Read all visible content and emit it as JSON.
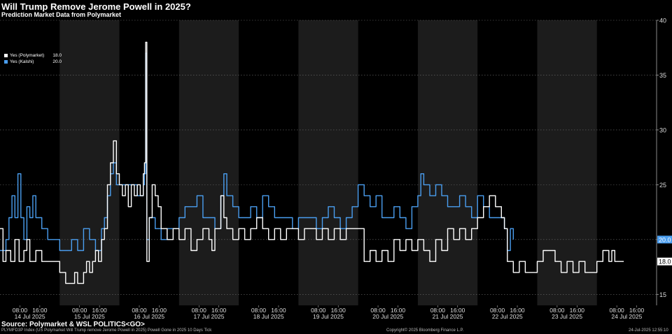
{
  "title": "Will Trump Remove Jerome Powell in 2025?",
  "subtitle": "Prediction Market Data from Polymarket",
  "source": "Source: Polymarket & WSL POLITICS<GO>",
  "footer": {
    "left": "PLYMFD3P Index (US Polymarket Will Trump remove Jerome Powell in 2025) Powell Gone in 2025 10 Days  Tick",
    "center": "Copyright© 2025 Bloomberg Finance L.P.",
    "right": "24-Jul-2025 12:55:10"
  },
  "colors": {
    "polymarket": "#ffffff",
    "kalshi": "#4a9ef0",
    "band": "#1c1c1c",
    "grid": "#6e6e6e",
    "yes_label": "#4a9ef0"
  },
  "legend": [
    {
      "name": "Yes (Polymarket)",
      "value": "18.0"
    },
    {
      "name": "Yes (Kalshi)",
      "value": "20.0"
    }
  ],
  "chart_data": {
    "type": "line",
    "title": "Will Trump Remove Jerome Powell in 2025?",
    "ylim": [
      14,
      40
    ],
    "yticks": [
      15,
      20,
      25,
      30,
      35,
      40
    ],
    "grid": true,
    "legend_position": "top-left",
    "x_hour_labels": [
      "08:00",
      "16:00"
    ],
    "x_day_labels": [
      "14 Jul 2025",
      "15 Jul 2025",
      "16 Jul 2025",
      "17 Jul 2025",
      "18 Jul 2025",
      "19 Jul 2025",
      "20 Jul 2025",
      "21 Jul 2025",
      "22 Jul 2025",
      "23 Jul 2025",
      "24 Jul 2025"
    ],
    "last_values": {
      "polymarket": "18.0",
      "kalshi": "20.0"
    },
    "series": [
      {
        "name": "Yes (Polymarket)",
        "points": [
          [
            0,
            21
          ],
          [
            0.05,
            18
          ],
          [
            0.1,
            19
          ],
          [
            0.18,
            18
          ],
          [
            0.25,
            20
          ],
          [
            0.32,
            18
          ],
          [
            0.4,
            19
          ],
          [
            0.45,
            20
          ],
          [
            0.5,
            18
          ],
          [
            0.6,
            19
          ],
          [
            0.7,
            18
          ],
          [
            0.8,
            18
          ],
          [
            0.9,
            18
          ],
          [
            1,
            17
          ],
          [
            1.1,
            16
          ],
          [
            1.2,
            16
          ],
          [
            1.25,
            17
          ],
          [
            1.3,
            16
          ],
          [
            1.4,
            17
          ],
          [
            1.45,
            18
          ],
          [
            1.5,
            17
          ],
          [
            1.55,
            18
          ],
          [
            1.6,
            19
          ],
          [
            1.65,
            18
          ],
          [
            1.7,
            20
          ],
          [
            1.75,
            21
          ],
          [
            1.8,
            25
          ],
          [
            1.85,
            27
          ],
          [
            1.9,
            29
          ],
          [
            1.95,
            26
          ],
          [
            2.0,
            25
          ],
          [
            2.05,
            24
          ],
          [
            2.1,
            25
          ],
          [
            2.15,
            23
          ],
          [
            2.2,
            25
          ],
          [
            2.25,
            24
          ],
          [
            2.3,
            25
          ],
          [
            2.35,
            24
          ],
          [
            2.4,
            26
          ],
          [
            2.42,
            27
          ],
          [
            2.44,
            38
          ],
          [
            2.46,
            18
          ],
          [
            2.5,
            22
          ],
          [
            2.55,
            25
          ],
          [
            2.6,
            24
          ],
          [
            2.65,
            23
          ],
          [
            2.7,
            21
          ],
          [
            2.8,
            20
          ],
          [
            2.9,
            21
          ],
          [
            3.0,
            20
          ],
          [
            3.1,
            21
          ],
          [
            3.2,
            19
          ],
          [
            3.3,
            20
          ],
          [
            3.4,
            21
          ],
          [
            3.5,
            20
          ],
          [
            3.55,
            19
          ],
          [
            3.6,
            21
          ],
          [
            3.7,
            24
          ],
          [
            3.75,
            22
          ],
          [
            3.8,
            21
          ],
          [
            3.9,
            20
          ],
          [
            4.0,
            21
          ],
          [
            4.1,
            20
          ],
          [
            4.2,
            21
          ],
          [
            4.3,
            22
          ],
          [
            4.4,
            21
          ],
          [
            4.5,
            20
          ],
          [
            4.6,
            21
          ],
          [
            4.7,
            20
          ],
          [
            4.8,
            21
          ],
          [
            4.9,
            21
          ],
          [
            5.0,
            20
          ],
          [
            5.1,
            21
          ],
          [
            5.2,
            21
          ],
          [
            5.3,
            20
          ],
          [
            5.4,
            21
          ],
          [
            5.5,
            20
          ],
          [
            5.6,
            21
          ],
          [
            5.7,
            20
          ],
          [
            5.8,
            21
          ],
          [
            5.9,
            21
          ],
          [
            6.0,
            21
          ],
          [
            6.1,
            18
          ],
          [
            6.2,
            19
          ],
          [
            6.3,
            18
          ],
          [
            6.4,
            19
          ],
          [
            6.5,
            18
          ],
          [
            6.6,
            20
          ],
          [
            6.7,
            19
          ],
          [
            6.8,
            20
          ],
          [
            6.9,
            19
          ],
          [
            7.0,
            20
          ],
          [
            7.1,
            19
          ],
          [
            7.2,
            18
          ],
          [
            7.3,
            20
          ],
          [
            7.4,
            19
          ],
          [
            7.5,
            21
          ],
          [
            7.6,
            20
          ],
          [
            7.7,
            21
          ],
          [
            7.8,
            20
          ],
          [
            7.9,
            21
          ],
          [
            8.0,
            22
          ],
          [
            8.1,
            23
          ],
          [
            8.2,
            24
          ],
          [
            8.3,
            23
          ],
          [
            8.4,
            22
          ],
          [
            8.45,
            21
          ],
          [
            8.5,
            18
          ],
          [
            8.6,
            17
          ],
          [
            8.7,
            18
          ],
          [
            8.8,
            17
          ],
          [
            8.9,
            17
          ],
          [
            9.0,
            18
          ],
          [
            9.1,
            19
          ],
          [
            9.2,
            19
          ],
          [
            9.3,
            18
          ],
          [
            9.4,
            17
          ],
          [
            9.5,
            18
          ],
          [
            9.6,
            17
          ],
          [
            9.7,
            18
          ],
          [
            9.8,
            17
          ],
          [
            9.9,
            17
          ],
          [
            10.0,
            18
          ],
          [
            10.1,
            19
          ],
          [
            10.2,
            18
          ],
          [
            10.25,
            19
          ],
          [
            10.3,
            18
          ],
          [
            10.45,
            18
          ]
        ]
      },
      {
        "name": "Yes (Kalshi)",
        "points": [
          [
            0,
            19
          ],
          [
            0.1,
            20
          ],
          [
            0.15,
            22
          ],
          [
            0.2,
            24
          ],
          [
            0.25,
            22
          ],
          [
            0.3,
            26
          ],
          [
            0.35,
            22
          ],
          [
            0.4,
            20
          ],
          [
            0.45,
            23
          ],
          [
            0.5,
            22
          ],
          [
            0.55,
            24
          ],
          [
            0.6,
            22
          ],
          [
            0.7,
            21
          ],
          [
            0.8,
            20
          ],
          [
            0.9,
            20
          ],
          [
            1.0,
            19
          ],
          [
            1.1,
            19
          ],
          [
            1.2,
            20
          ],
          [
            1.3,
            19
          ],
          [
            1.4,
            21
          ],
          [
            1.5,
            20
          ],
          [
            1.6,
            19
          ],
          [
            1.7,
            21
          ],
          [
            1.75,
            22
          ],
          [
            1.8,
            24
          ],
          [
            1.85,
            26
          ],
          [
            1.9,
            27
          ],
          [
            1.95,
            25
          ],
          [
            2.0,
            25
          ],
          [
            2.1,
            25
          ],
          [
            2.2,
            25
          ],
          [
            2.3,
            24
          ],
          [
            2.4,
            25
          ],
          [
            2.42,
            26
          ],
          [
            2.44,
            37
          ],
          [
            2.46,
            20
          ],
          [
            2.5,
            22
          ],
          [
            2.6,
            21
          ],
          [
            2.7,
            20
          ],
          [
            2.8,
            21
          ],
          [
            2.9,
            21
          ],
          [
            3.0,
            22
          ],
          [
            3.1,
            23
          ],
          [
            3.2,
            23
          ],
          [
            3.3,
            24
          ],
          [
            3.4,
            22
          ],
          [
            3.5,
            22
          ],
          [
            3.6,
            21
          ],
          [
            3.7,
            24
          ],
          [
            3.75,
            26
          ],
          [
            3.8,
            24
          ],
          [
            3.9,
            23
          ],
          [
            4.0,
            22
          ],
          [
            4.1,
            22
          ],
          [
            4.2,
            23
          ],
          [
            4.3,
            22
          ],
          [
            4.4,
            24
          ],
          [
            4.5,
            23
          ],
          [
            4.6,
            22
          ],
          [
            4.7,
            22
          ],
          [
            4.8,
            22
          ],
          [
            4.9,
            21
          ],
          [
            5.0,
            22
          ],
          [
            5.1,
            22
          ],
          [
            5.2,
            22
          ],
          [
            5.3,
            21
          ],
          [
            5.4,
            22
          ],
          [
            5.5,
            23
          ],
          [
            5.6,
            22
          ],
          [
            5.7,
            21
          ],
          [
            5.8,
            22
          ],
          [
            5.9,
            23
          ],
          [
            6.0,
            25
          ],
          [
            6.1,
            24
          ],
          [
            6.2,
            23
          ],
          [
            6.3,
            24
          ],
          [
            6.4,
            22
          ],
          [
            6.5,
            22
          ],
          [
            6.6,
            23
          ],
          [
            6.7,
            22
          ],
          [
            6.8,
            21
          ],
          [
            6.9,
            23
          ],
          [
            7.0,
            24
          ],
          [
            7.05,
            26
          ],
          [
            7.1,
            25
          ],
          [
            7.2,
            24
          ],
          [
            7.3,
            25
          ],
          [
            7.4,
            24
          ],
          [
            7.5,
            23
          ],
          [
            7.6,
            23
          ],
          [
            7.7,
            24
          ],
          [
            7.8,
            23
          ],
          [
            7.9,
            22
          ],
          [
            8.0,
            24
          ],
          [
            8.1,
            23
          ],
          [
            8.2,
            22
          ],
          [
            8.3,
            22
          ],
          [
            8.4,
            22
          ],
          [
            8.45,
            21
          ],
          [
            8.5,
            19
          ],
          [
            8.55,
            21
          ],
          [
            8.6,
            20
          ]
        ]
      }
    ]
  }
}
